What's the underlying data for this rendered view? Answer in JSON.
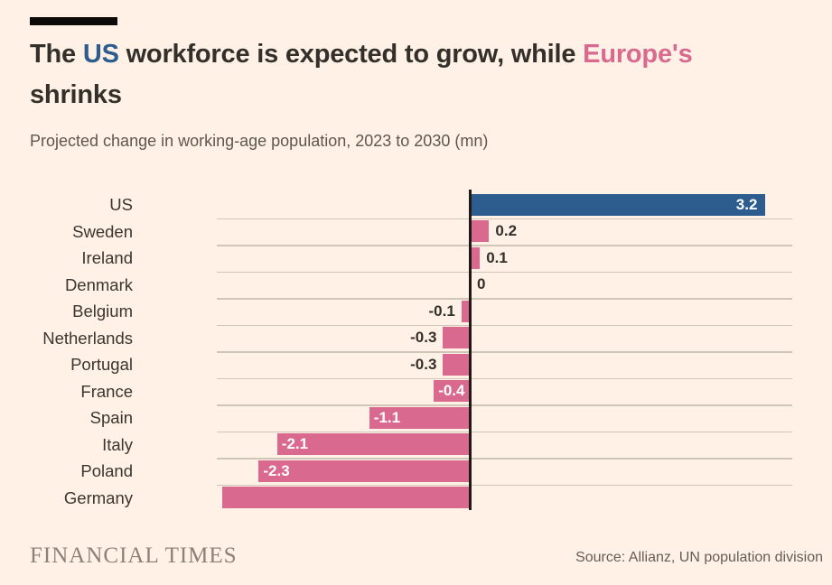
{
  "header": {
    "title_parts": [
      "The ",
      "US",
      " workforce is expected to grow, while ",
      "Europe's",
      "shrinks"
    ],
    "subtitle": "Projected change in working-age population, 2023 to 2030 (mn)"
  },
  "palette": {
    "background": "#FFF1E5",
    "us_blue": "#2d5c8e",
    "europe_pink": "#d9698e",
    "text_dark": "#33302b",
    "muted_text": "#5e574d",
    "gridline": "#cfc6b8",
    "zero_line": "#1f1a16",
    "logo_gray": "#8c8273"
  },
  "chart_data": {
    "type": "bar",
    "orientation": "horizontal",
    "unit": "mn",
    "title": "The US workforce is expected to grow, while Europe's shrinks",
    "subtitle": "Projected change in working-age population, 2023 to 2030 (mn)",
    "categories": [
      "US",
      "Sweden",
      "Ireland",
      "Denmark",
      "Belgium",
      "Netherlands",
      "Portugal",
      "France",
      "Spain",
      "Italy",
      "Poland",
      "Germany"
    ],
    "values": [
      3.2,
      0.2,
      0.1,
      0,
      -0.1,
      -0.3,
      -0.3,
      -0.4,
      -1.1,
      -2.1,
      -2.3,
      -2.7
    ],
    "value_labels": [
      "3.2",
      "0.2",
      "0.1",
      "0",
      "-0.1",
      "-0.3",
      "-0.3",
      "-0.4",
      "-1.1",
      "-2.1",
      "-2.3",
      ""
    ],
    "label_placement": [
      "inside",
      "outside",
      "outside",
      "outside",
      "outside",
      "outside",
      "outside",
      "inside",
      "inside",
      "inside",
      "inside",
      "none"
    ],
    "highlight_category": "US",
    "xlim": [
      -2.75,
      3.5
    ],
    "zero_baseline": true,
    "grid": "row separators only",
    "legend": "none",
    "notes": "Germany bar carries no data label; value estimated from bar length"
  },
  "footer": {
    "brand": "FINANCIAL TIMES",
    "source": "Source: Allianz, UN population division"
  }
}
